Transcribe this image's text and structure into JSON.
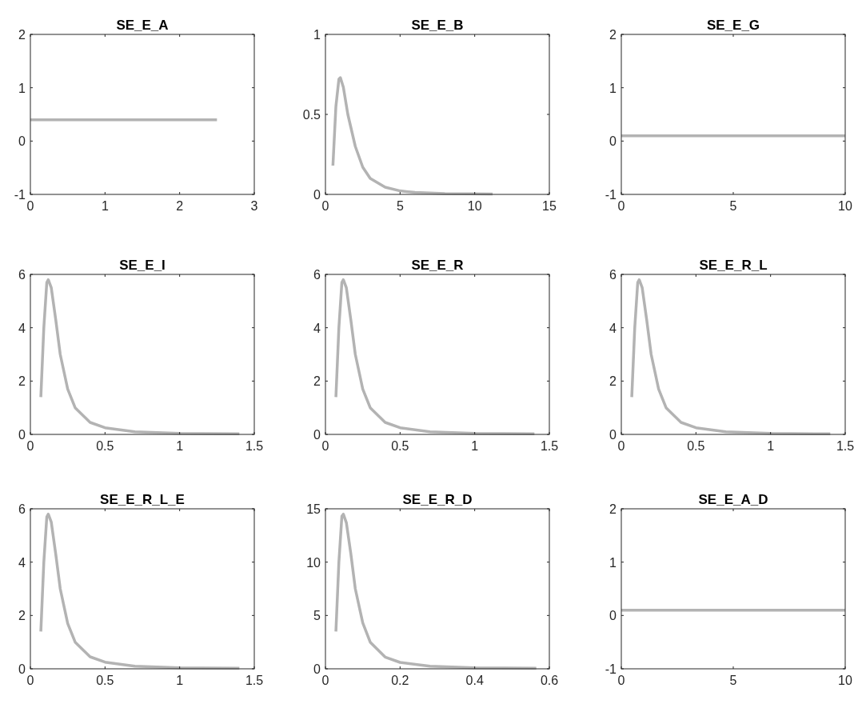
{
  "chart_data": [
    {
      "type": "line",
      "title": "SE_E_A",
      "x": [
        0,
        2.5
      ],
      "values": [
        0.4,
        0.4
      ],
      "color": "#b3b3b3",
      "xlim": [
        0,
        3
      ],
      "ylim": [
        -1,
        2
      ],
      "xticks": [
        0,
        1,
        2,
        3
      ],
      "yticks": [
        -1,
        0,
        1,
        2
      ]
    },
    {
      "type": "line",
      "title": "SE_E_B",
      "x": [
        0.5,
        0.7,
        0.9,
        1.0,
        1.2,
        1.5,
        2,
        2.5,
        3,
        4,
        5,
        6,
        8,
        11.2
      ],
      "values": [
        0.18,
        0.55,
        0.72,
        0.73,
        0.67,
        0.5,
        0.3,
        0.17,
        0.1,
        0.045,
        0.022,
        0.012,
        0.005,
        0.002
      ],
      "color": "#b3b3b3",
      "xlim": [
        0,
        15
      ],
      "ylim": [
        0,
        1
      ],
      "xticks": [
        0,
        5,
        10,
        15
      ],
      "yticks": [
        0,
        0.5,
        1
      ]
    },
    {
      "type": "line",
      "title": "SE_E_G",
      "x": [
        0,
        10
      ],
      "values": [
        0.1,
        0.1
      ],
      "color": "#b3b3b3",
      "xlim": [
        0,
        10
      ],
      "ylim": [
        -1,
        2
      ],
      "xticks": [
        0,
        5,
        10
      ],
      "yticks": [
        -1,
        0,
        1,
        2
      ]
    },
    {
      "type": "line",
      "title": "SE_E_I",
      "x": [
        0.07,
        0.09,
        0.11,
        0.12,
        0.14,
        0.17,
        0.2,
        0.25,
        0.3,
        0.4,
        0.5,
        0.7,
        1.0,
        1.4
      ],
      "values": [
        1.4,
        4,
        5.7,
        5.8,
        5.5,
        4.3,
        3.0,
        1.7,
        1.0,
        0.45,
        0.25,
        0.1,
        0.04,
        0.02
      ],
      "color": "#b3b3b3",
      "xlim": [
        0,
        1.5
      ],
      "ylim": [
        0,
        6
      ],
      "xticks": [
        0,
        0.5,
        1,
        1.5
      ],
      "yticks": [
        0,
        2,
        4,
        6
      ]
    },
    {
      "type": "line",
      "title": "SE_E_R",
      "x": [
        0.07,
        0.09,
        0.11,
        0.12,
        0.14,
        0.17,
        0.2,
        0.25,
        0.3,
        0.4,
        0.5,
        0.7,
        1.0,
        1.4
      ],
      "values": [
        1.4,
        4,
        5.7,
        5.8,
        5.5,
        4.3,
        3.0,
        1.7,
        1.0,
        0.45,
        0.25,
        0.1,
        0.04,
        0.02
      ],
      "color": "#b3b3b3",
      "xlim": [
        0,
        1.5
      ],
      "ylim": [
        0,
        6
      ],
      "xticks": [
        0,
        0.5,
        1,
        1.5
      ],
      "yticks": [
        0,
        2,
        4,
        6
      ]
    },
    {
      "type": "line",
      "title": "SE_E_R_L",
      "x": [
        0.07,
        0.09,
        0.11,
        0.12,
        0.14,
        0.17,
        0.2,
        0.25,
        0.3,
        0.4,
        0.5,
        0.7,
        1.0,
        1.4
      ],
      "values": [
        1.4,
        4,
        5.7,
        5.8,
        5.5,
        4.3,
        3.0,
        1.7,
        1.0,
        0.45,
        0.25,
        0.1,
        0.04,
        0.02
      ],
      "color": "#b3b3b3",
      "xlim": [
        0,
        1.5
      ],
      "ylim": [
        0,
        6
      ],
      "xticks": [
        0,
        0.5,
        1,
        1.5
      ],
      "yticks": [
        0,
        2,
        4,
        6
      ]
    },
    {
      "type": "line",
      "title": "SE_E_R_L_E",
      "x": [
        0.07,
        0.09,
        0.11,
        0.12,
        0.14,
        0.17,
        0.2,
        0.25,
        0.3,
        0.4,
        0.5,
        0.7,
        1.0,
        1.4
      ],
      "values": [
        1.4,
        4,
        5.7,
        5.8,
        5.5,
        4.3,
        3.0,
        1.7,
        1.0,
        0.45,
        0.25,
        0.1,
        0.04,
        0.02
      ],
      "color": "#b3b3b3",
      "xlim": [
        0,
        1.5
      ],
      "ylim": [
        0,
        6
      ],
      "xticks": [
        0,
        0.5,
        1,
        1.5
      ],
      "yticks": [
        0,
        2,
        4,
        6
      ]
    },
    {
      "type": "line",
      "title": "SE_E_R_D",
      "x": [
        0.028,
        0.036,
        0.044,
        0.048,
        0.056,
        0.068,
        0.08,
        0.1,
        0.12,
        0.16,
        0.2,
        0.28,
        0.4,
        0.565
      ],
      "values": [
        3.5,
        10,
        14.3,
        14.5,
        13.7,
        10.8,
        7.5,
        4.3,
        2.5,
        1.1,
        0.6,
        0.25,
        0.1,
        0.05
      ],
      "color": "#b3b3b3",
      "xlim": [
        0,
        0.6
      ],
      "ylim": [
        0,
        15
      ],
      "xticks": [
        0,
        0.2,
        0.4,
        0.6
      ],
      "yticks": [
        0,
        5,
        10,
        15
      ]
    },
    {
      "type": "line",
      "title": "SE_E_A_D",
      "x": [
        0,
        10
      ],
      "values": [
        0.1,
        0.1
      ],
      "color": "#b3b3b3",
      "xlim": [
        0,
        10
      ],
      "ylim": [
        -1,
        2
      ],
      "xticks": [
        0,
        5,
        10
      ],
      "yticks": [
        -1,
        0,
        1,
        2
      ]
    }
  ]
}
